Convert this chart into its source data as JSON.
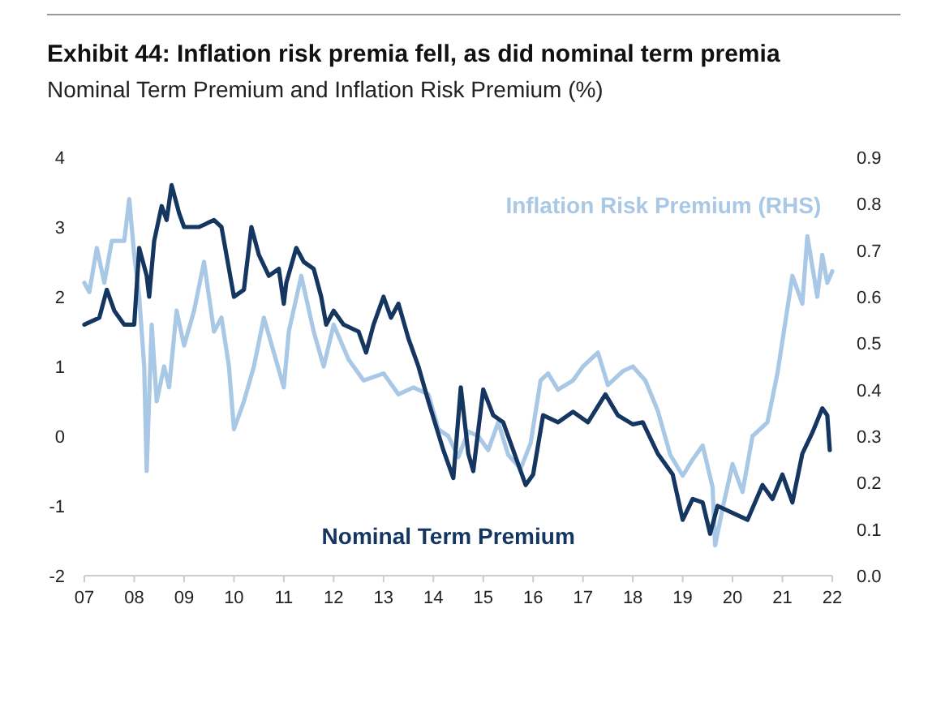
{
  "chart_data": {
    "type": "line",
    "title": "Exhibit 44: Inflation risk premia fell, as did nominal term premia",
    "subtitle": "Nominal Term Premium and Inflation Risk Premium (%)",
    "xlim": [
      2007,
      2022
    ],
    "xticks": [
      {
        "value": 2007,
        "label": "07"
      },
      {
        "value": 2008,
        "label": "08"
      },
      {
        "value": 2009,
        "label": "09"
      },
      {
        "value": 2010,
        "label": "10"
      },
      {
        "value": 2011,
        "label": "11"
      },
      {
        "value": 2012,
        "label": "12"
      },
      {
        "value": 2013,
        "label": "13"
      },
      {
        "value": 2014,
        "label": "14"
      },
      {
        "value": 2015,
        "label": "15"
      },
      {
        "value": 2016,
        "label": "16"
      },
      {
        "value": 2017,
        "label": "17"
      },
      {
        "value": 2018,
        "label": "18"
      },
      {
        "value": 2019,
        "label": "19"
      },
      {
        "value": 2020,
        "label": "20"
      },
      {
        "value": 2021,
        "label": "21"
      },
      {
        "value": 2022,
        "label": "22"
      }
    ],
    "ylim": [
      -2,
      4
    ],
    "yticks": [
      -2,
      -1,
      0,
      1,
      2,
      3,
      4
    ],
    "y2lim": [
      0,
      0.9
    ],
    "y2ticks": [
      {
        "value": 0,
        "label": "0.0"
      },
      0.1,
      0.2,
      0.3,
      0.4,
      0.5,
      0.6,
      0.7,
      0.8,
      0.9
    ],
    "grid": false,
    "line_style": "solid",
    "marker": "none",
    "series": [
      {
        "name": "Inflation Risk Premium (RHS)",
        "color": "#a9c8e6",
        "axis": "y2",
        "x": [
          2007.0,
          2007.1,
          2007.25,
          2007.4,
          2007.55,
          2007.8,
          2007.9,
          2008.0,
          2008.1,
          2008.2,
          2008.25,
          2008.35,
          2008.45,
          2008.6,
          2008.7,
          2008.85,
          2009.0,
          2009.2,
          2009.4,
          2009.6,
          2009.75,
          2009.9,
          2010.0,
          2010.2,
          2010.4,
          2010.6,
          2010.8,
          2011.0,
          2011.1,
          2011.35,
          2011.6,
          2011.8,
          2012.0,
          2012.3,
          2012.6,
          2013.0,
          2013.3,
          2013.6,
          2013.9,
          2014.1,
          2014.3,
          2014.5,
          2014.7,
          2014.9,
          2015.1,
          2015.3,
          2015.5,
          2015.75,
          2015.95,
          2016.15,
          2016.3,
          2016.5,
          2016.8,
          2017.0,
          2017.3,
          2017.5,
          2017.8,
          2018.0,
          2018.25,
          2018.5,
          2018.75,
          2019.0,
          2019.2,
          2019.4,
          2019.6,
          2019.65,
          2019.8,
          2020.0,
          2020.2,
          2020.4,
          2020.7,
          2020.9,
          2021.1,
          2021.2,
          2021.4,
          2021.5,
          2021.7,
          2021.8,
          2021.9,
          2022.0
        ],
        "values": [
          0.63,
          0.61,
          0.705,
          0.63,
          0.72,
          0.72,
          0.81,
          0.69,
          0.6,
          0.45,
          0.225,
          0.54,
          0.375,
          0.45,
          0.405,
          0.57,
          0.495,
          0.57,
          0.675,
          0.525,
          0.555,
          0.45,
          0.315,
          0.375,
          0.45,
          0.555,
          0.48,
          0.405,
          0.525,
          0.645,
          0.525,
          0.45,
          0.54,
          0.465,
          0.42,
          0.435,
          0.39,
          0.405,
          0.39,
          0.315,
          0.3,
          0.255,
          0.31,
          0.3,
          0.27,
          0.33,
          0.26,
          0.23,
          0.285,
          0.42,
          0.435,
          0.4,
          0.42,
          0.45,
          0.48,
          0.41,
          0.44,
          0.45,
          0.42,
          0.355,
          0.26,
          0.215,
          0.25,
          0.28,
          0.19,
          0.065,
          0.145,
          0.24,
          0.18,
          0.3,
          0.33,
          0.435,
          0.575,
          0.645,
          0.585,
          0.73,
          0.6,
          0.69,
          0.63,
          0.655
        ]
      },
      {
        "name": "Nominal Term Premium",
        "color": "#143660",
        "x": [
          2007.0,
          2007.3,
          2007.45,
          2007.6,
          2007.8,
          2008.0,
          2008.1,
          2008.25,
          2008.3,
          2008.4,
          2008.55,
          2008.65,
          2008.75,
          2008.9,
          2009.0,
          2009.3,
          2009.6,
          2009.75,
          2009.9,
          2010.0,
          2010.2,
          2010.35,
          2010.5,
          2010.7,
          2010.9,
          2011.0,
          2011.05,
          2011.25,
          2011.4,
          2011.6,
          2011.75,
          2011.85,
          2012.0,
          2012.2,
          2012.5,
          2012.65,
          2012.8,
          2013.0,
          2013.15,
          2013.3,
          2013.5,
          2013.7,
          2013.9,
          2014.2,
          2014.4,
          2014.55,
          2014.7,
          2014.8,
          2015.0,
          2015.2,
          2015.4,
          2015.6,
          2015.85,
          2016.0,
          2016.2,
          2016.5,
          2016.8,
          2017.1,
          2017.45,
          2017.7,
          2018.0,
          2018.2,
          2018.5,
          2018.8,
          2019.0,
          2019.2,
          2019.4,
          2019.55,
          2019.7,
          2020.0,
          2020.3,
          2020.6,
          2020.8,
          2021.0,
          2021.2,
          2021.4,
          2021.6,
          2021.8,
          2021.9,
          2021.95
        ],
        "values": [
          1.6,
          1.7,
          2.1,
          1.8,
          1.6,
          1.6,
          2.7,
          2.3,
          2.0,
          2.8,
          3.3,
          3.1,
          3.6,
          3.2,
          3.0,
          3.0,
          3.1,
          3.0,
          2.4,
          2.0,
          2.1,
          3.0,
          2.6,
          2.3,
          2.4,
          1.9,
          2.2,
          2.7,
          2.5,
          2.4,
          2.0,
          1.6,
          1.8,
          1.6,
          1.5,
          1.2,
          1.6,
          2.0,
          1.7,
          1.9,
          1.4,
          1.0,
          0.5,
          -0.2,
          -0.6,
          0.7,
          -0.25,
          -0.5,
          0.67,
          0.3,
          0.2,
          -0.2,
          -0.7,
          -0.55,
          0.3,
          0.2,
          0.35,
          0.2,
          0.6,
          0.3,
          0.17,
          0.2,
          -0.25,
          -0.55,
          -1.2,
          -0.9,
          -0.95,
          -1.4,
          -1.0,
          -1.1,
          -1.2,
          -0.7,
          -0.9,
          -0.55,
          -0.95,
          -0.25,
          0.05,
          0.4,
          0.3,
          -0.2
        ]
      }
    ]
  }
}
